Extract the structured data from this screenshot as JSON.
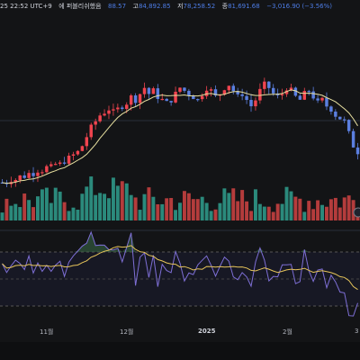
{
  "header": {
    "time": "25 22:52 UTC+9",
    "status": "에 퍼블리쉬했음",
    "open_tail": "88.57",
    "high_label": "고",
    "high": "84,892.85",
    "low_label": "저",
    "low": "78,258.52",
    "close_label": "종",
    "close": "81,691.68",
    "change": "−3,016.90 (−3.56%)"
  },
  "xaxis": {
    "labels": [
      "11월",
      "12월",
      "2025",
      "2월",
      "3"
    ]
  },
  "colors": {
    "up": "#f0444f",
    "down": "#5b7fe0",
    "ma": "#e8e0a0",
    "rsi": "#7e6fd6",
    "rsi_ma": "#e6c45a",
    "vol_up": "#2b8a7c",
    "vol_down": "#b43c3c"
  },
  "chart_data": {
    "type": "candlestick",
    "candles_close_trend": [
      68,
      68,
      69,
      69,
      70,
      70,
      71,
      71,
      72,
      72,
      73,
      73,
      74,
      74,
      75,
      76,
      77,
      78,
      80,
      83,
      86,
      88,
      90,
      91,
      92,
      91,
      92,
      93,
      94,
      96,
      95,
      97,
      99,
      97,
      98,
      96,
      95,
      94,
      95,
      97,
      99,
      98,
      97,
      96,
      95,
      97,
      99,
      98,
      96,
      97,
      99,
      100,
      98,
      96,
      97,
      95,
      93,
      95,
      98,
      100,
      99,
      97,
      96,
      97,
      99,
      98,
      96,
      95,
      97,
      98,
      96,
      94,
      95,
      93,
      92,
      90,
      89,
      88,
      84,
      80,
      78
    ],
    "moving_average": true,
    "volume": true,
    "rsi": {
      "panel": "lower",
      "with_ma": true
    }
  }
}
